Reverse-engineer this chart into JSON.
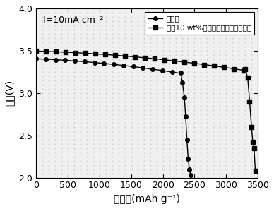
{
  "annotation": "I=10mA cm⁻²",
  "xlabel": "比容量(mAh g⁻¹)",
  "ylabel": "电压(V)",
  "xlim": [
    0,
    3500
  ],
  "ylim": [
    2.0,
    4.0
  ],
  "xticks": [
    0,
    500,
    1000,
    1500,
    2000,
    2500,
    3000,
    3500
  ],
  "yticks": [
    2.0,
    2.5,
    3.0,
    3.5,
    4.0
  ],
  "legend1": "空白组",
  "legend2": "添加10 wt%氮改性的碳担载铜制化剂",
  "background_color": "#ffffff",
  "plot_bg_color": "#f0f0f0",
  "line_color": "#000000",
  "marker_size": 4,
  "linewidth": 1.0,
  "fontsize_label": 10,
  "fontsize_tick": 9,
  "fontsize_legend": 7.5,
  "fontsize_annotation": 9
}
